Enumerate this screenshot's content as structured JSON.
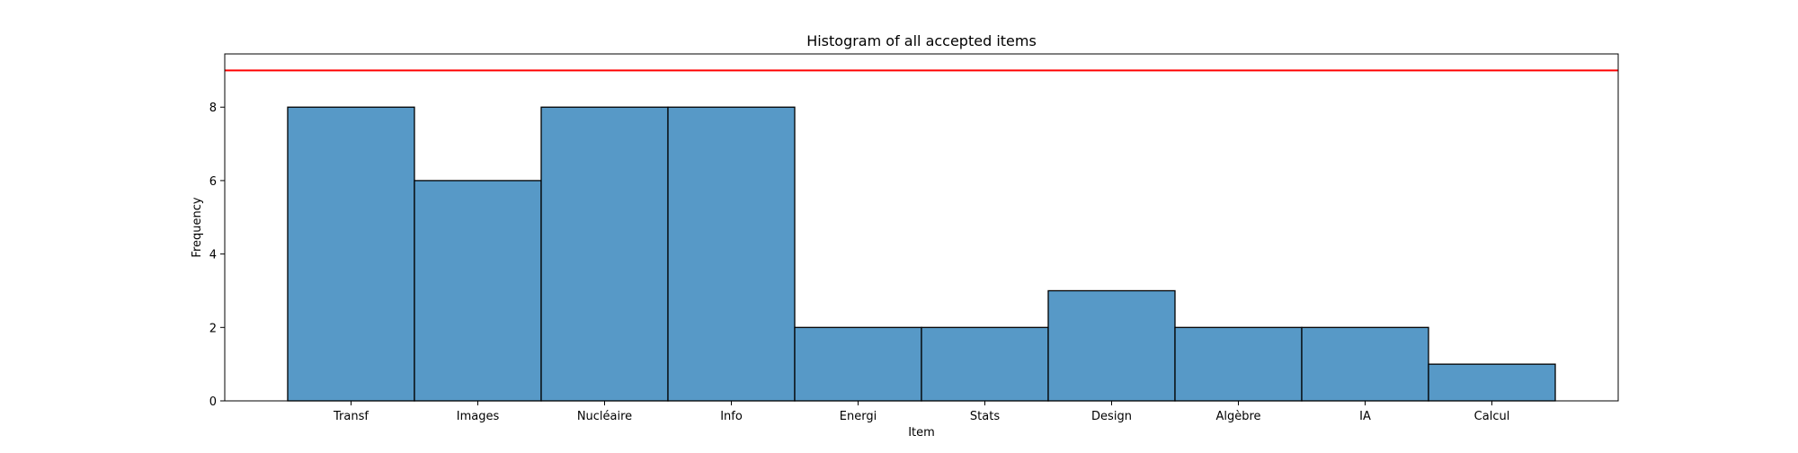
{
  "chart_data": {
    "type": "bar",
    "title": "Histogram of all accepted items",
    "xlabel": "Item",
    "ylabel": "Frequency",
    "categories": [
      "Transf",
      "Images",
      "Nucléaire",
      "Info",
      "Energi",
      "Stats",
      "Design",
      "Algèbre",
      "IA",
      "Calcul"
    ],
    "values": [
      8,
      6,
      8,
      8,
      2,
      2,
      3,
      2,
      2,
      1
    ],
    "ylim": [
      0,
      9.45
    ],
    "yticks": [
      0,
      2,
      4,
      6,
      8
    ],
    "reference_line": 9,
    "grid": false,
    "colors": {
      "bar_fill": "#5799c7",
      "bar_edge": "#000000",
      "reference_line": "#ff0000",
      "axis": "#000000"
    }
  }
}
